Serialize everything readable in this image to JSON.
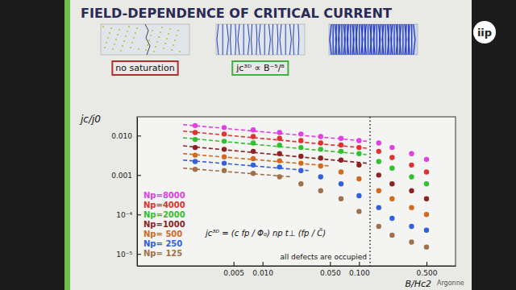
{
  "slide": {
    "panel_labels": [
      {
        "text": "no saturation",
        "color": "#b03030"
      },
      {
        "text": "jc³ᴰ ∝ B⁻⁵/⁸",
        "color": "#40b040"
      }
    ],
    "logos": [
      "iip",
      "Argonne"
    ]
  },
  "chart_data": {
    "type": "scatter",
    "title": "FIELD-DEPENDENCE OF CRITICAL CURRENT",
    "x_label": "B/Hc2",
    "y_label": "jc/j0",
    "formula": "jc³ᴰ = (c fp / Φ₀) np t⊥ (fp / C̃)",
    "log": true,
    "grid": false,
    "legend": "lower left",
    "xlim": [
      0.0005,
      1
    ],
    "ylim": [
      5e-06,
      0.03
    ],
    "xticks": [
      0.005,
      {
        "value": 0.01,
        "label": "0.010"
      },
      {
        "value": 0.05,
        "label": "0.050"
      },
      {
        "value": 0.1,
        "label": "0.100"
      },
      {
        "value": 0.5,
        "label": "0.500"
      }
    ],
    "yticks": [
      {
        "value": 1e-05,
        "label": "10⁻⁵"
      },
      {
        "value": 0.0001,
        "label": "10⁻⁴"
      },
      0.001,
      {
        "value": 0.01,
        "label": "0.010"
      }
    ],
    "x": [
      0.002,
      0.004,
      0.008,
      0.015,
      0.025,
      0.04,
      0.065,
      0.1,
      0.16,
      0.22,
      0.35,
      0.5
    ],
    "series": [
      {
        "name": "Np=8000",
        "color": "#e040e0",
        "marker": "circle",
        "values": [
          0.018,
          0.016,
          0.014,
          0.012,
          0.011,
          0.0095,
          0.0085,
          0.0075,
          0.0065,
          0.005,
          0.0035,
          0.0025
        ]
      },
      {
        "name": "Np=4000",
        "color": "#e03030",
        "marker": "circle",
        "values": [
          0.012,
          0.011,
          0.0095,
          0.0085,
          0.0075,
          0.0065,
          0.0058,
          0.005,
          0.004,
          0.0028,
          0.0018,
          0.0012
        ]
      },
      {
        "name": "Np=2000",
        "color": "#30c030",
        "marker": "circle",
        "values": [
          0.008,
          0.0072,
          0.0065,
          0.0057,
          0.005,
          0.0045,
          0.004,
          0.0035,
          0.0022,
          0.0015,
          0.0009,
          0.0006
        ]
      },
      {
        "name": "Np=1000",
        "color": "#8b2323",
        "marker": "circle",
        "values": [
          0.005,
          0.0045,
          0.004,
          0.0035,
          0.003,
          0.0027,
          0.0024,
          0.0018,
          0.001,
          0.0006,
          0.0004,
          0.00025
        ]
      },
      {
        "name": "Np= 500",
        "color": "#d2691e",
        "marker": "circle",
        "values": [
          0.0032,
          0.0029,
          0.0026,
          0.0023,
          0.002,
          0.0017,
          0.0012,
          0.0008,
          0.0004,
          0.00025,
          0.00015,
          0.0001
        ]
      },
      {
        "name": "Np= 250",
        "color": "#3060e0",
        "marker": "circle",
        "values": [
          0.0022,
          0.002,
          0.0018,
          0.0016,
          0.0013,
          0.0009,
          0.0006,
          0.0003,
          0.00015,
          8e-05,
          5e-05,
          4e-05
        ]
      },
      {
        "name": "Np= 125",
        "color": "#a0704a",
        "marker": "circle",
        "values": [
          0.0014,
          0.0013,
          0.0011,
          0.0009,
          0.0006,
          0.0004,
          0.00025,
          0.00012,
          5e-05,
          3e-05,
          2e-05,
          1.5e-05
        ]
      },
      {
        "type": "line",
        "line_style": "dashed",
        "color": "#e040e0",
        "x": [
          0.0015,
          0.12
        ],
        "values": [
          0.019,
          0.0072
        ]
      },
      {
        "type": "line",
        "line_style": "dashed",
        "color": "#e03030",
        "x": [
          0.0015,
          0.12
        ],
        "values": [
          0.013,
          0.0048
        ]
      },
      {
        "type": "line",
        "line_style": "dashed",
        "color": "#30c030",
        "x": [
          0.0015,
          0.12
        ],
        "values": [
          0.0088,
          0.0033
        ]
      },
      {
        "type": "line",
        "line_style": "dashed",
        "color": "#8b2323",
        "x": [
          0.0015,
          0.12
        ],
        "values": [
          0.0055,
          0.002
        ]
      },
      {
        "type": "line",
        "line_style": "dashed",
        "color": "#d2691e",
        "x": [
          0.0015,
          0.05
        ],
        "values": [
          0.0035,
          0.0017
        ]
      },
      {
        "type": "line",
        "line_style": "dashed",
        "color": "#3060e0",
        "x": [
          0.0015,
          0.03
        ],
        "values": [
          0.0024,
          0.0013
        ]
      },
      {
        "type": "line",
        "line_style": "dashed",
        "color": "#a0704a",
        "x": [
          0.0015,
          0.02
        ],
        "values": [
          0.0015,
          0.0009
        ]
      }
    ],
    "vline": {
      "x": 0.13,
      "label": "all defects are occupied",
      "line_style": "dotted"
    }
  }
}
